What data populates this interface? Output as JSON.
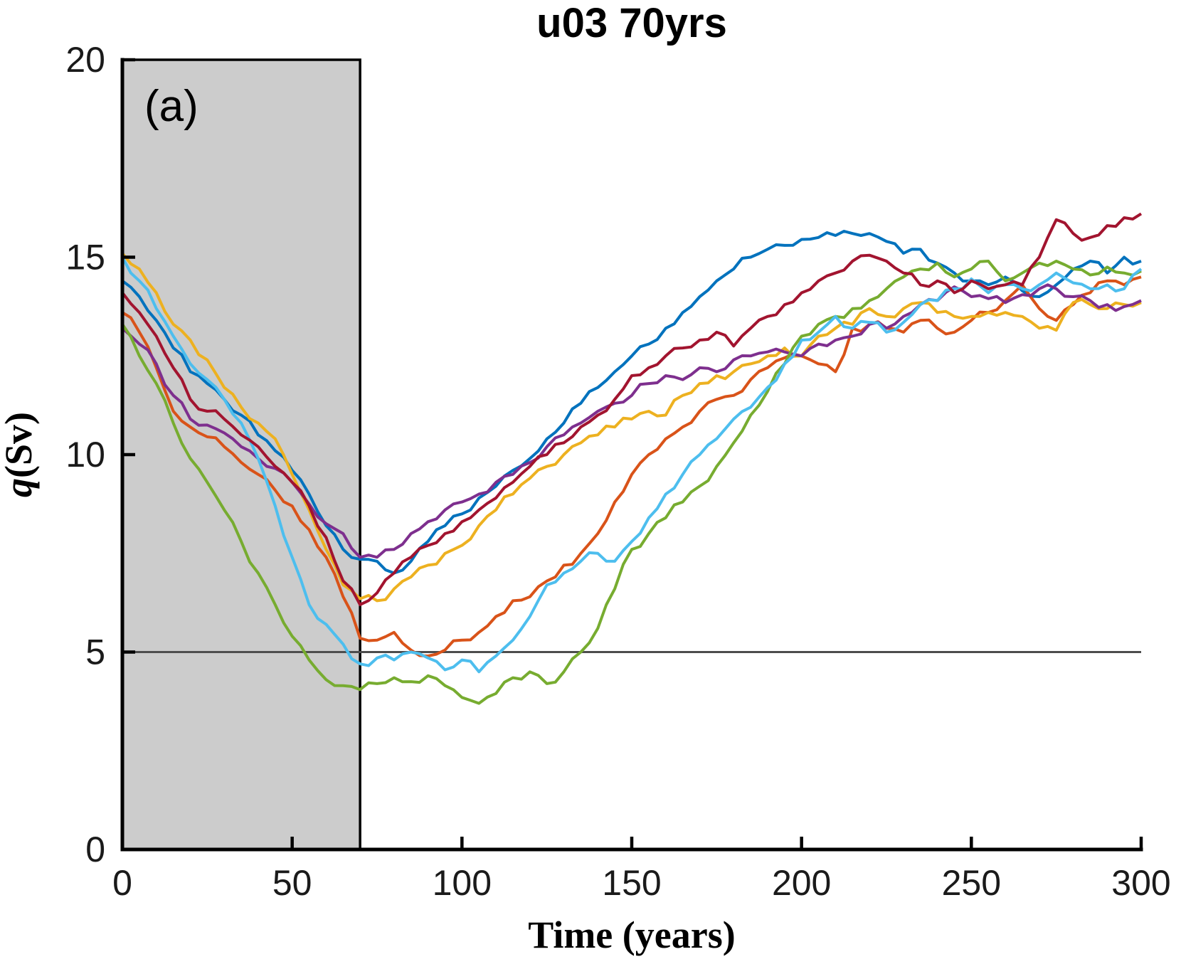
{
  "panel_label": "(a)",
  "chart_data": {
    "type": "line",
    "title": "u03 70yrs",
    "xlabel": "Time (years)",
    "ylabel_q": "q",
    "ylabel_unit": "(Sv)",
    "xlim": [
      0,
      300
    ],
    "ylim": [
      0,
      20
    ],
    "xticks": [
      0,
      50,
      100,
      150,
      200,
      250,
      300
    ],
    "yticks": [
      0,
      5,
      10,
      15,
      20
    ],
    "grid": false,
    "legend": null,
    "x_start": 0,
    "x_step": 5,
    "axis_color": "#000000",
    "tick_label_color": "#1a1a1a",
    "shaded_region": {
      "x0": 0,
      "x1": 70,
      "fill": "#cccccc",
      "edge": "#000000"
    },
    "reference_line": {
      "y": 5,
      "color": "#4d4d4d"
    },
    "series": [
      {
        "name": "member-blue",
        "color": "#0072BD",
        "values": [
          14.4,
          14.0,
          13.4,
          12.7,
          12.1,
          11.8,
          11.4,
          11.0,
          10.5,
          10.1,
          9.6,
          9.0,
          8.2,
          7.6,
          7.35,
          7.3,
          7.0,
          7.3,
          7.8,
          8.2,
          8.5,
          8.9,
          9.2,
          9.6,
          9.9,
          10.4,
          10.8,
          11.3,
          11.7,
          12.1,
          12.5,
          12.8,
          13.2,
          13.6,
          14.0,
          14.4,
          14.7,
          15.0,
          15.2,
          15.3,
          15.45,
          15.5,
          15.55,
          15.6,
          15.6,
          15.4,
          15.1,
          15.2,
          14.85,
          14.6,
          14.4,
          14.3,
          14.5,
          14.15,
          14.0,
          14.3,
          14.7,
          14.9,
          14.6,
          15.0,
          14.9
        ]
      },
      {
        "name": "member-orange",
        "color": "#D95319",
        "values": [
          13.6,
          13.1,
          12.2,
          11.1,
          10.7,
          10.45,
          10.2,
          9.8,
          9.5,
          9.1,
          8.7,
          8.1,
          7.4,
          6.4,
          5.35,
          5.3,
          5.5,
          5.05,
          4.9,
          5.05,
          5.3,
          5.5,
          5.9,
          6.3,
          6.4,
          6.8,
          7.2,
          7.5,
          8.0,
          8.8,
          9.5,
          10.0,
          10.4,
          10.7,
          11.1,
          11.4,
          11.5,
          11.9,
          12.2,
          12.45,
          12.5,
          12.3,
          12.1,
          13.2,
          13.3,
          13.2,
          13.1,
          13.4,
          13.2,
          13.1,
          13.4,
          13.6,
          13.9,
          14.3,
          13.7,
          13.4,
          13.8,
          14.1,
          14.4,
          14.3,
          14.5
        ]
      },
      {
        "name": "member-yellow",
        "color": "#EDB120",
        "values": [
          15.1,
          14.7,
          14.1,
          13.3,
          12.9,
          12.4,
          11.7,
          11.2,
          10.8,
          10.4,
          9.5,
          8.6,
          7.6,
          6.7,
          6.35,
          6.3,
          6.6,
          6.9,
          7.2,
          7.5,
          7.7,
          8.2,
          8.6,
          9.0,
          9.4,
          9.7,
          10.0,
          10.3,
          10.5,
          10.7,
          10.9,
          11.1,
          11.0,
          11.5,
          11.8,
          12.0,
          12.1,
          12.3,
          12.5,
          12.7,
          12.5,
          13.0,
          13.2,
          13.3,
          13.7,
          13.5,
          13.7,
          13.85,
          13.6,
          13.5,
          13.5,
          13.6,
          13.6,
          13.5,
          13.2,
          13.15,
          13.85,
          13.8,
          13.7,
          13.8,
          13.85
        ]
      },
      {
        "name": "member-purple",
        "color": "#7E2F8E",
        "values": [
          13.2,
          12.8,
          12.3,
          11.5,
          10.9,
          10.75,
          10.55,
          10.2,
          9.9,
          9.65,
          9.3,
          8.75,
          8.25,
          8.0,
          7.4,
          7.4,
          7.6,
          8.0,
          8.3,
          8.6,
          8.8,
          9.0,
          9.3,
          9.5,
          9.8,
          10.2,
          10.5,
          10.8,
          11.1,
          11.3,
          11.5,
          11.8,
          12.0,
          11.9,
          12.2,
          12.1,
          12.4,
          12.5,
          12.6,
          12.6,
          12.5,
          12.8,
          12.9,
          13.0,
          13.3,
          13.2,
          13.5,
          13.8,
          13.9,
          14.25,
          14.0,
          13.95,
          13.85,
          14.05,
          14.2,
          14.2,
          14.0,
          13.9,
          13.8,
          13.75,
          13.9
        ]
      },
      {
        "name": "member-green",
        "color": "#77AC30",
        "values": [
          13.3,
          12.5,
          11.8,
          10.8,
          9.9,
          9.3,
          8.6,
          7.8,
          7.0,
          6.2,
          5.4,
          4.8,
          4.3,
          4.15,
          4.05,
          4.2,
          4.35,
          4.25,
          4.4,
          4.15,
          3.85,
          3.7,
          3.95,
          4.35,
          4.5,
          4.2,
          4.5,
          5.0,
          5.6,
          6.6,
          7.6,
          8.0,
          8.4,
          8.8,
          9.2,
          9.7,
          10.3,
          11.0,
          11.6,
          12.3,
          13.0,
          13.3,
          13.5,
          13.7,
          13.9,
          14.2,
          14.5,
          14.7,
          14.85,
          14.5,
          14.7,
          14.9,
          14.4,
          14.6,
          14.85,
          14.9,
          14.7,
          14.55,
          14.75,
          14.6,
          14.65
        ]
      },
      {
        "name": "member-cyan",
        "color": "#4DBEEE",
        "values": [
          15.0,
          14.4,
          13.7,
          13.0,
          12.3,
          11.9,
          11.4,
          10.8,
          9.9,
          8.7,
          7.4,
          6.2,
          5.7,
          5.2,
          4.7,
          4.85,
          4.8,
          5.0,
          4.85,
          4.55,
          4.8,
          4.5,
          4.9,
          5.3,
          5.9,
          6.7,
          7.0,
          7.3,
          7.5,
          7.3,
          7.8,
          8.4,
          9.0,
          9.5,
          10.0,
          10.4,
          10.9,
          11.2,
          11.7,
          12.3,
          12.9,
          13.1,
          13.5,
          13.2,
          13.35,
          13.1,
          13.35,
          13.8,
          13.9,
          14.2,
          14.45,
          14.1,
          14.3,
          14.2,
          14.3,
          14.6,
          14.35,
          14.2,
          14.3,
          14.2,
          14.7
        ]
      },
      {
        "name": "member-maroon",
        "color": "#A2142F",
        "values": [
          14.1,
          13.6,
          13.0,
          12.2,
          11.4,
          11.1,
          10.9,
          10.5,
          10.2,
          9.7,
          9.3,
          8.7,
          7.9,
          6.8,
          6.2,
          6.5,
          7.0,
          7.4,
          7.7,
          8.0,
          8.3,
          8.6,
          8.9,
          9.3,
          9.7,
          10.0,
          10.3,
          10.7,
          11.0,
          11.4,
          12.0,
          12.2,
          12.5,
          12.7,
          12.9,
          13.1,
          12.75,
          13.2,
          13.5,
          13.8,
          14.1,
          14.4,
          14.6,
          14.9,
          15.05,
          14.9,
          14.6,
          14.3,
          14.4,
          14.1,
          14.4,
          14.2,
          14.3,
          14.3,
          15.0,
          15.95,
          15.6,
          15.5,
          15.8,
          16.0,
          16.1
        ]
      }
    ]
  }
}
